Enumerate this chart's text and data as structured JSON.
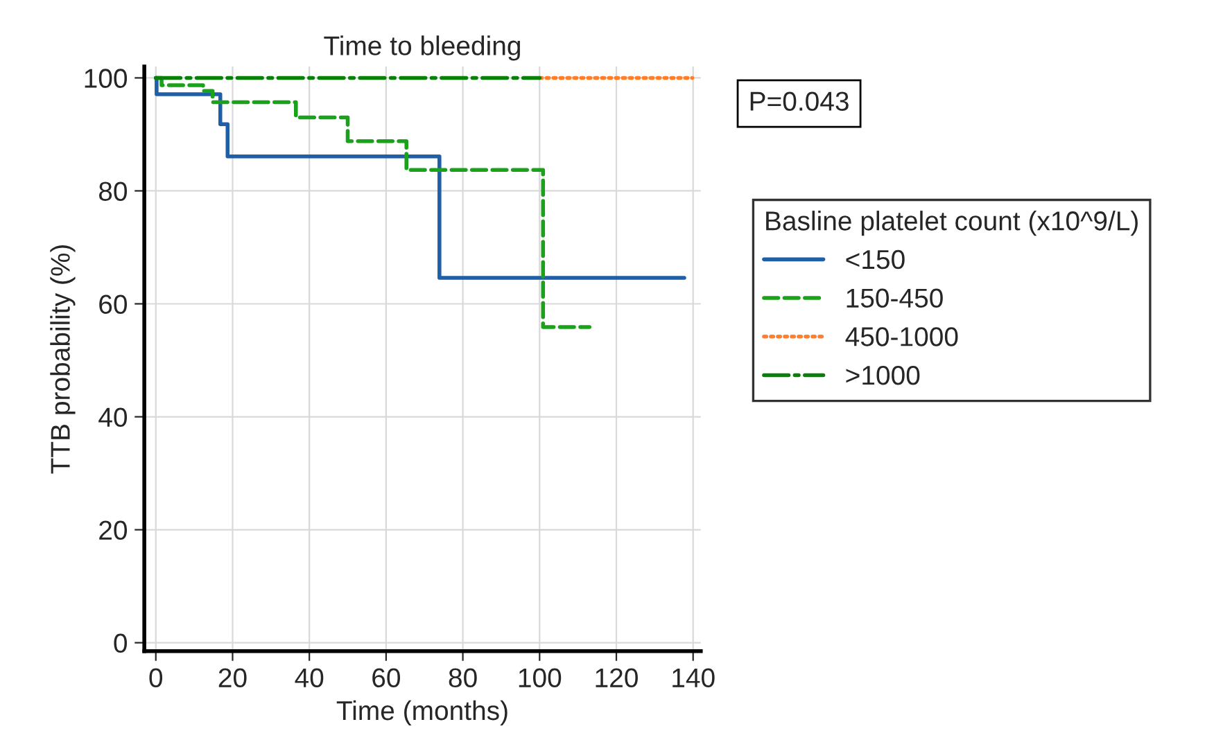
{
  "chart_data": {
    "type": "step",
    "title": "Time to bleeding",
    "xlabel": "Time (months)",
    "ylabel": "TTB probability (%)",
    "legend_title": "Basline platelet count (x10^9/L)",
    "legend": "right",
    "grid": true,
    "xlim": [
      -3,
      142
    ],
    "ylim": [
      -1.5,
      102
    ],
    "xticks": [
      0,
      20,
      40,
      60,
      80,
      100,
      120,
      140
    ],
    "yticks": [
      0,
      20,
      40,
      60,
      80,
      100
    ],
    "annotations": [
      "P=0.043"
    ],
    "series": [
      {
        "name": "<150",
        "color": "#1f5fa8",
        "line_style": "solid",
        "x": [
          0,
          0.2,
          16.8,
          18.7,
          73.9,
          137.7
        ],
        "values": [
          100,
          97.1,
          91.8,
          86.1,
          64.6,
          64.6
        ]
      },
      {
        "name": "150-450",
        "color": "#1aa31a",
        "line_style": "dashed",
        "x": [
          0,
          1.5,
          12.3,
          14.8,
          36.5,
          50,
          65.3,
          100.9,
          113
        ],
        "values": [
          100,
          98.7,
          97.7,
          95.7,
          93.0,
          88.8,
          83.7,
          55.9,
          55.9
        ]
      },
      {
        "name": "450-1000",
        "color": "#ff7f2a",
        "line_style": "dotted",
        "x": [
          100,
          139.8
        ],
        "values": [
          100,
          100
        ]
      },
      {
        "name": ">1000",
        "color": "#0a7f0a",
        "line_style": "dashdot",
        "x": [
          0,
          100
        ],
        "values": [
          100,
          100
        ]
      }
    ]
  }
}
